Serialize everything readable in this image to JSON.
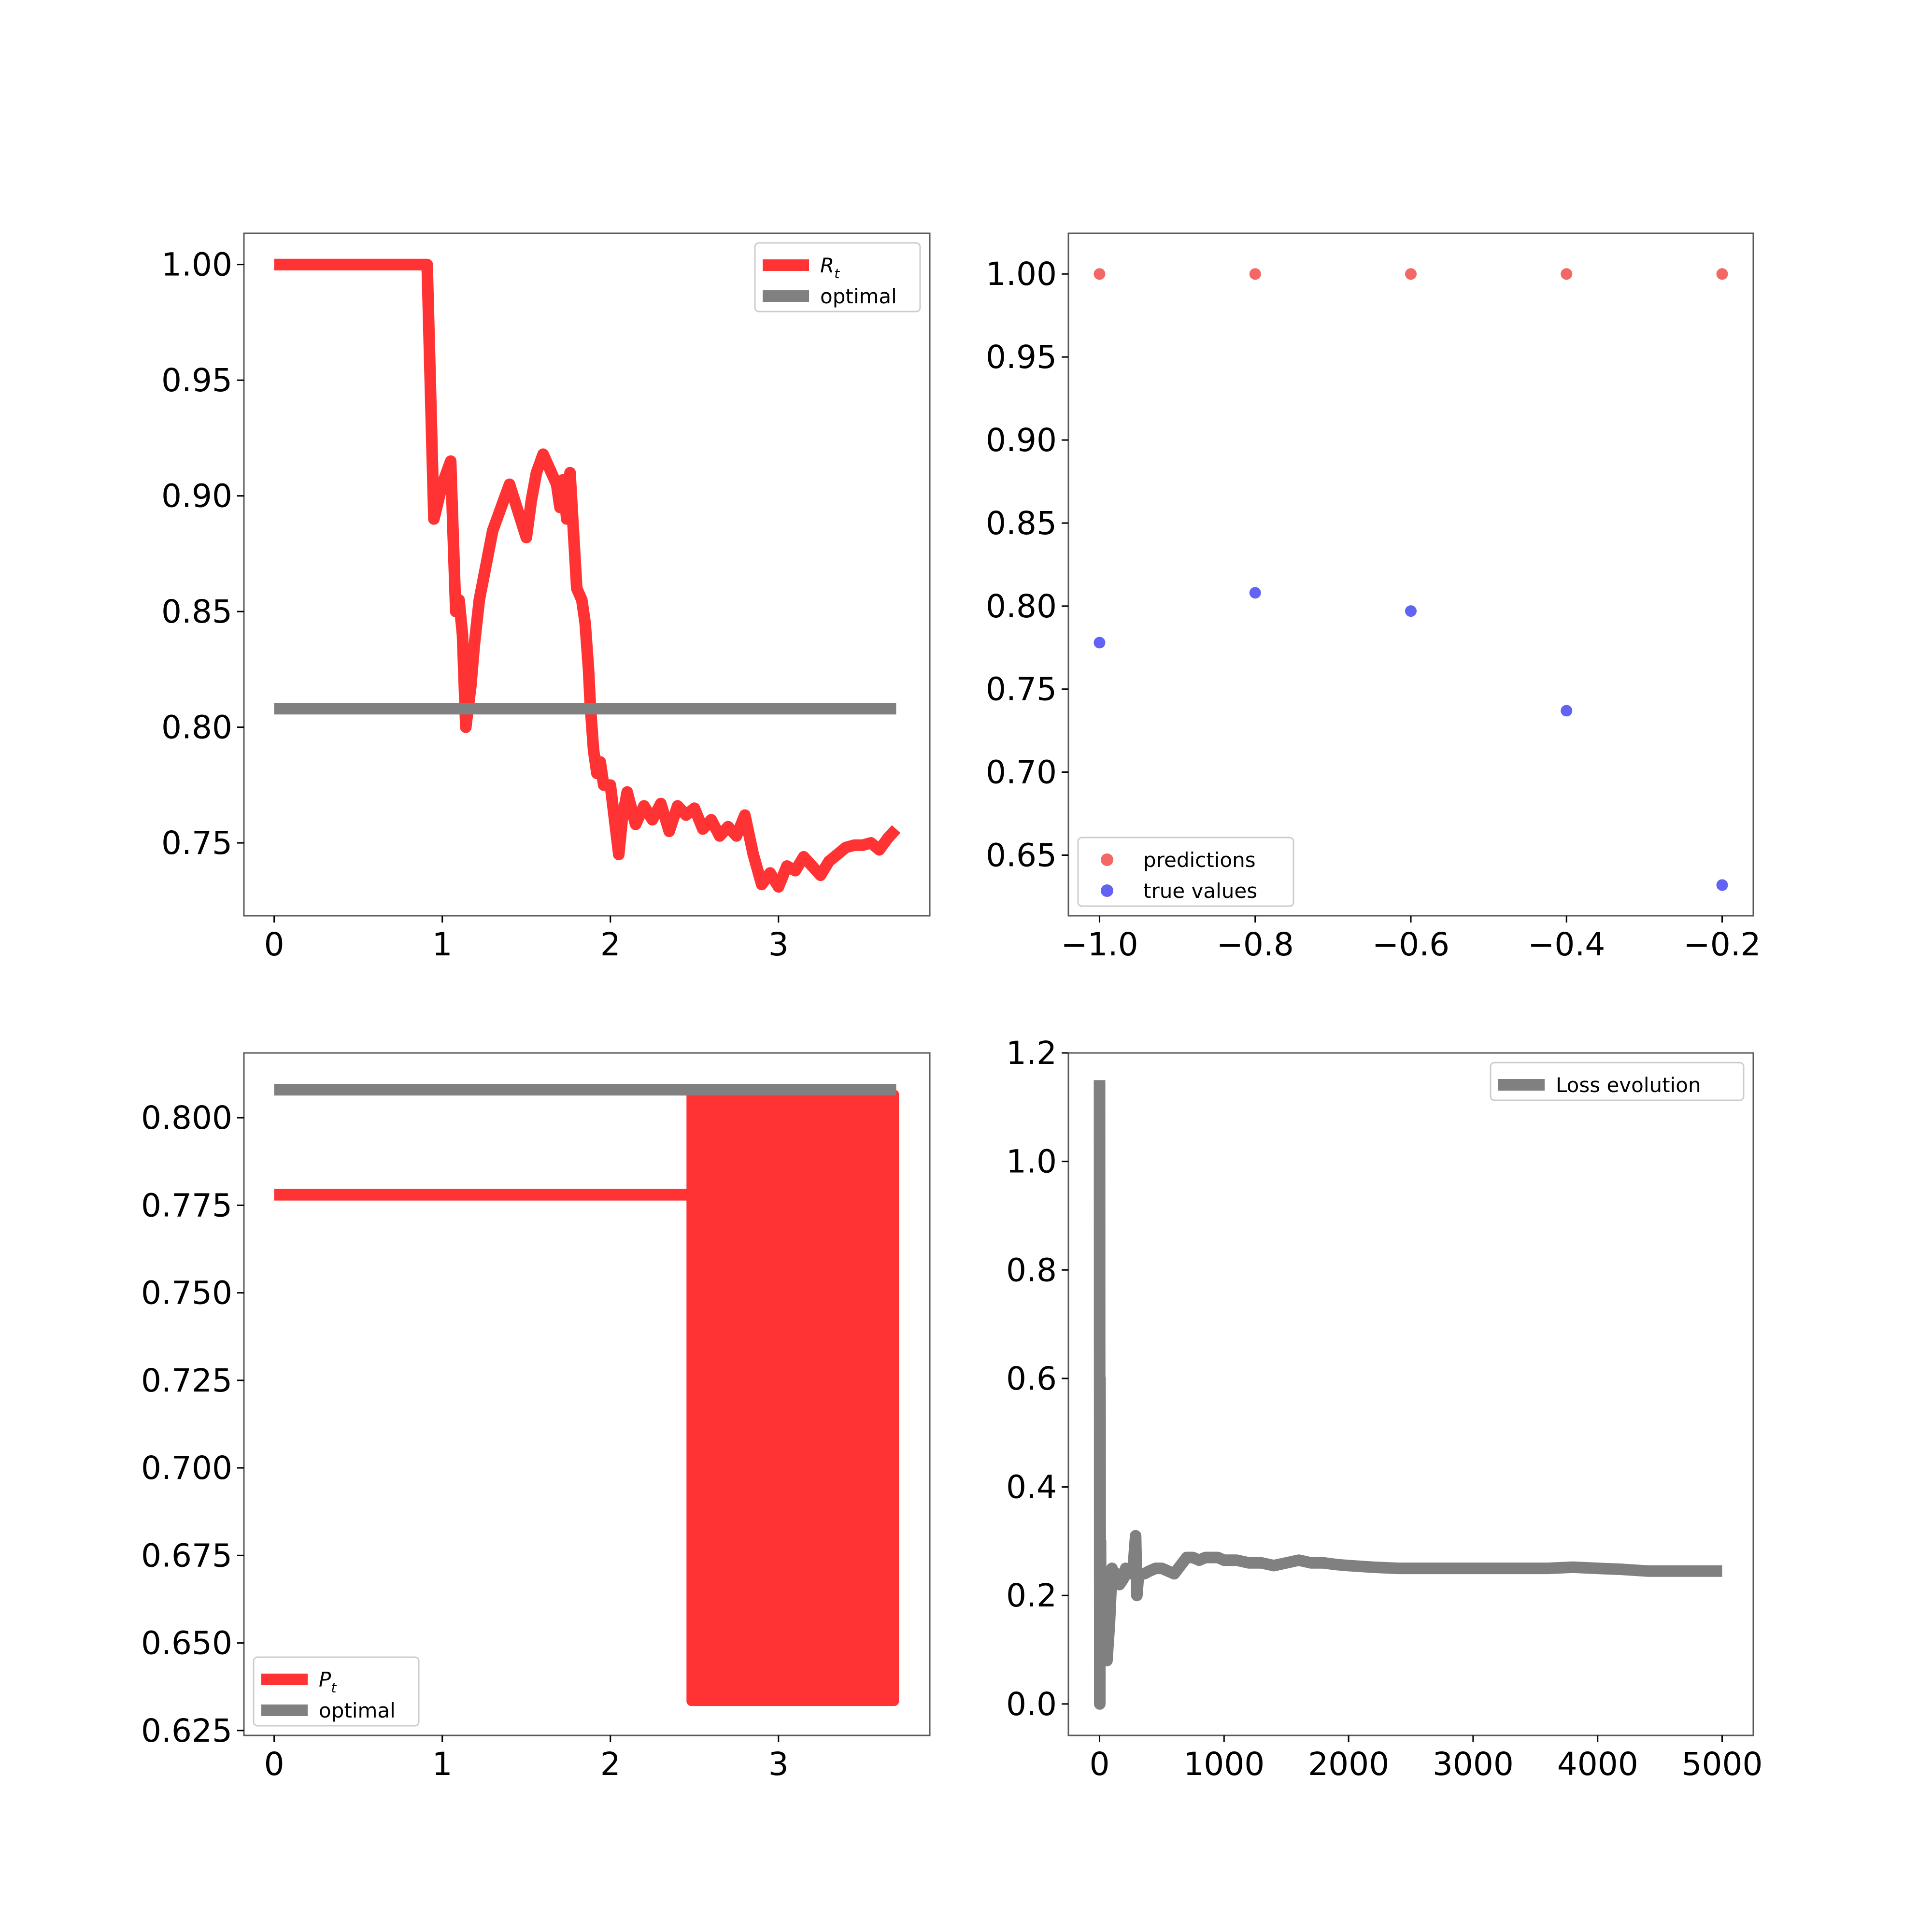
{
  "colors": {
    "red": "#ff3333",
    "gray": "#808080",
    "pred": "#f25f5c",
    "truth": "#5a5af2",
    "axis": "#595959"
  },
  "chart_data": [
    {
      "id": "rt",
      "type": "line",
      "title": "",
      "xlabel": "",
      "ylabel": "",
      "xlim": [
        -0.18,
        3.9
      ],
      "ylim": [
        0.7185,
        1.0135
      ],
      "xticks": [
        0,
        1,
        2,
        3
      ],
      "xtick_labels": [
        "0",
        "1",
        "2",
        "3"
      ],
      "yticks": [
        0.75,
        0.8,
        0.85,
        0.9,
        0.95,
        1.0
      ],
      "ytick_labels": [
        "0.75",
        "0.80",
        "0.85",
        "0.90",
        "0.95",
        "1.00"
      ],
      "legend": {
        "position": "upper right",
        "entries": [
          {
            "label": "R",
            "sub": "t",
            "italic": true,
            "color_key": "red"
          },
          {
            "label": "optimal",
            "sub": "",
            "italic": false,
            "color_key": "gray"
          }
        ]
      },
      "series": [
        {
          "name": "R_t",
          "color_key": "red",
          "x": [
            0,
            0.91,
            0.95,
            1.0,
            1.05,
            1.08,
            1.1,
            1.12,
            1.14,
            1.17,
            1.19,
            1.22,
            1.3,
            1.4,
            1.5,
            1.53,
            1.56,
            1.6,
            1.68,
            1.7,
            1.72,
            1.74,
            1.76,
            1.8,
            1.83,
            1.85,
            1.87,
            1.88,
            1.9,
            1.92,
            1.94,
            1.96,
            2.0,
            2.05,
            2.07,
            2.1,
            2.15,
            2.2,
            2.25,
            2.3,
            2.35,
            2.4,
            2.45,
            2.5,
            2.55,
            2.6,
            2.65,
            2.7,
            2.75,
            2.8,
            2.85,
            2.9,
            2.95,
            3.0,
            3.05,
            3.1,
            3.15,
            3.2,
            3.25,
            3.3,
            3.35,
            3.4,
            3.45,
            3.5,
            3.55,
            3.6,
            3.65,
            3.7
          ],
          "y": [
            1.0,
            1.0,
            0.89,
            0.905,
            0.915,
            0.85,
            0.855,
            0.84,
            0.8,
            0.818,
            0.835,
            0.855,
            0.885,
            0.905,
            0.882,
            0.898,
            0.91,
            0.918,
            0.905,
            0.895,
            0.907,
            0.89,
            0.91,
            0.86,
            0.855,
            0.845,
            0.825,
            0.81,
            0.79,
            0.78,
            0.785,
            0.775,
            0.775,
            0.745,
            0.76,
            0.772,
            0.758,
            0.766,
            0.76,
            0.767,
            0.755,
            0.766,
            0.762,
            0.765,
            0.756,
            0.76,
            0.753,
            0.757,
            0.753,
            0.762,
            0.745,
            0.732,
            0.737,
            0.731,
            0.74,
            0.738,
            0.744,
            0.74,
            0.736,
            0.742,
            0.745,
            0.748,
            0.749,
            0.749,
            0.75,
            0.747,
            0.752,
            0.756
          ]
        },
        {
          "name": "optimal",
          "color_key": "gray",
          "x": [
            0,
            3.7
          ],
          "y": [
            0.808,
            0.808
          ]
        }
      ]
    },
    {
      "id": "scatter",
      "type": "scatter",
      "title": "",
      "xlabel": "",
      "ylabel": "",
      "xlim": [
        -1.04,
        -0.16
      ],
      "ylim": [
        0.6135,
        1.0245
      ],
      "xticks": [
        -1.0,
        -0.8,
        -0.6,
        -0.4,
        -0.2
      ],
      "xtick_labels": [
        "−1.0",
        "−0.8",
        "−0.6",
        "−0.4",
        "−0.2"
      ],
      "yticks": [
        0.65,
        0.7,
        0.75,
        0.8,
        0.85,
        0.9,
        0.95,
        1.0
      ],
      "ytick_labels": [
        "0.65",
        "0.70",
        "0.75",
        "0.80",
        "0.85",
        "0.90",
        "0.95",
        "1.00"
      ],
      "legend": {
        "position": "lower left",
        "entries": [
          {
            "label": "predictions",
            "sub": "",
            "italic": false,
            "color_key": "pred"
          },
          {
            "label": "true values",
            "sub": "",
            "italic": false,
            "color_key": "truth"
          }
        ]
      },
      "series": [
        {
          "name": "predictions",
          "color_key": "pred",
          "x": [
            -1.0,
            -0.8,
            -0.6,
            -0.4,
            -0.2
          ],
          "y": [
            1.0,
            1.0,
            1.0,
            1.0,
            1.0
          ]
        },
        {
          "name": "true values",
          "color_key": "truth",
          "x": [
            -1.0,
            -0.8,
            -0.6,
            -0.4,
            -0.2
          ],
          "y": [
            0.778,
            0.808,
            0.797,
            0.737,
            0.632
          ]
        }
      ]
    },
    {
      "id": "pt",
      "type": "area",
      "title": "",
      "xlabel": "",
      "ylabel": "",
      "xlim": [
        -0.18,
        3.9
      ],
      "ylim": [
        0.6236,
        0.8185
      ],
      "xticks": [
        0,
        1,
        2,
        3
      ],
      "xtick_labels": [
        "0",
        "1",
        "2",
        "3"
      ],
      "yticks": [
        0.625,
        0.65,
        0.675,
        0.7,
        0.725,
        0.75,
        0.775,
        0.8
      ],
      "ytick_labels": [
        "0.625",
        "0.650",
        "0.675",
        "0.700",
        "0.725",
        "0.750",
        "0.775",
        "0.800"
      ],
      "legend": {
        "position": "lower left",
        "entries": [
          {
            "label": "P",
            "sub": "t",
            "italic": true,
            "color_key": "red"
          },
          {
            "label": "optimal",
            "sub": "",
            "italic": false,
            "color_key": "gray"
          }
        ]
      },
      "series": [
        {
          "name": "P_t",
          "color_key": "red",
          "x": [
            0,
            2.47
          ],
          "y": [
            0.778,
            0.778
          ],
          "oscillation": {
            "x_start": 2.47,
            "x_end": 3.7,
            "y_low": 0.632,
            "y_high": 0.808
          }
        },
        {
          "name": "optimal",
          "color_key": "gray",
          "x": [
            0,
            3.7
          ],
          "y": [
            0.808,
            0.808
          ]
        }
      ]
    },
    {
      "id": "loss",
      "type": "line",
      "title": "",
      "xlabel": "",
      "ylabel": "",
      "xlim": [
        -250,
        5250
      ],
      "ylim": [
        -0.058,
        1.2
      ],
      "xticks": [
        0,
        1000,
        2000,
        3000,
        4000,
        5000
      ],
      "xtick_labels": [
        "0",
        "1000",
        "2000",
        "3000",
        "4000",
        "5000"
      ],
      "yticks": [
        0.0,
        0.2,
        0.4,
        0.6,
        0.8,
        1.0,
        1.2
      ],
      "ytick_labels": [
        "0.0",
        "0.2",
        "0.4",
        "0.6",
        "0.8",
        "1.0",
        "1.2"
      ],
      "legend": {
        "position": "upper right",
        "entries": [
          {
            "label": "Loss evolution",
            "sub": "",
            "italic": false,
            "color_key": "gray"
          }
        ]
      },
      "series": [
        {
          "name": "Loss evolution",
          "color_key": "gray",
          "x": [
            0,
            2,
            4,
            6,
            8,
            10,
            15,
            20,
            30,
            45,
            60,
            80,
            100,
            120,
            140,
            160,
            190,
            210,
            240,
            270,
            290,
            300,
            310,
            330,
            360,
            400,
            450,
            500,
            550,
            600,
            650,
            700,
            750,
            800,
            850,
            900,
            950,
            1000,
            1100,
            1200,
            1300,
            1400,
            1500,
            1600,
            1700,
            1800,
            1900,
            2000,
            2200,
            2400,
            2600,
            2800,
            3000,
            3200,
            3400,
            3600,
            3800,
            4000,
            4200,
            4400,
            4600,
            4800,
            5000
          ],
          "y": [
            1.15,
            0.0,
            0.6,
            0.1,
            0.3,
            0.15,
            0.25,
            0.12,
            0.2,
            0.1,
            0.08,
            0.15,
            0.25,
            0.22,
            0.24,
            0.22,
            0.23,
            0.25,
            0.24,
            0.25,
            0.31,
            0.2,
            0.23,
            0.24,
            0.24,
            0.245,
            0.25,
            0.25,
            0.245,
            0.24,
            0.255,
            0.27,
            0.27,
            0.265,
            0.27,
            0.27,
            0.27,
            0.265,
            0.265,
            0.26,
            0.26,
            0.255,
            0.26,
            0.265,
            0.26,
            0.26,
            0.257,
            0.255,
            0.252,
            0.25,
            0.25,
            0.25,
            0.25,
            0.25,
            0.25,
            0.25,
            0.252,
            0.25,
            0.248,
            0.245,
            0.245,
            0.245,
            0.245
          ]
        }
      ]
    }
  ]
}
